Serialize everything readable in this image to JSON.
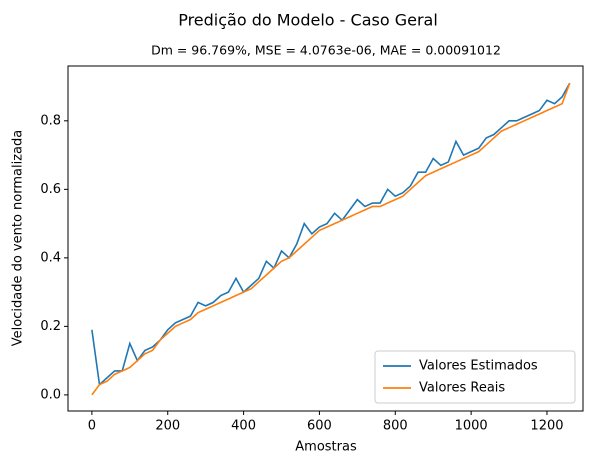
{
  "chart_data": {
    "type": "line",
    "title": "Predição do Modelo - Caso Geral",
    "subtitle": "Dm = 96.769%, MSE = 4.0763e-06, MAE = 0.00091012",
    "x_label": "Amostras",
    "y_label": "Velocidade do vento normalizada",
    "x": [
      0,
      20,
      40,
      60,
      80,
      100,
      120,
      140,
      160,
      180,
      200,
      220,
      240,
      260,
      280,
      300,
      320,
      340,
      360,
      380,
      400,
      420,
      440,
      460,
      480,
      500,
      520,
      540,
      560,
      580,
      600,
      620,
      640,
      660,
      680,
      700,
      720,
      740,
      760,
      780,
      800,
      820,
      840,
      860,
      880,
      900,
      920,
      940,
      960,
      980,
      1000,
      1020,
      1040,
      1060,
      1080,
      1100,
      1120,
      1140,
      1160,
      1180,
      1200,
      1220,
      1240,
      1260
    ],
    "series": [
      {
        "name": "Valores Estimados",
        "color": "#1f77b4",
        "values": [
          0.19,
          0.03,
          0.05,
          0.07,
          0.07,
          0.15,
          0.1,
          0.13,
          0.14,
          0.16,
          0.19,
          0.21,
          0.22,
          0.23,
          0.27,
          0.26,
          0.27,
          0.29,
          0.3,
          0.34,
          0.3,
          0.32,
          0.34,
          0.39,
          0.37,
          0.42,
          0.4,
          0.44,
          0.5,
          0.47,
          0.49,
          0.5,
          0.53,
          0.51,
          0.54,
          0.57,
          0.55,
          0.56,
          0.56,
          0.6,
          0.58,
          0.59,
          0.61,
          0.65,
          0.65,
          0.69,
          0.67,
          0.68,
          0.74,
          0.7,
          0.71,
          0.72,
          0.75,
          0.76,
          0.78,
          0.8,
          0.8,
          0.81,
          0.82,
          0.83,
          0.86,
          0.85,
          0.87,
          0.91
        ]
      },
      {
        "name": "Valores Reais",
        "color": "#ff7f0e",
        "values": [
          0.0,
          0.03,
          0.04,
          0.06,
          0.07,
          0.08,
          0.1,
          0.12,
          0.13,
          0.16,
          0.18,
          0.2,
          0.21,
          0.22,
          0.24,
          0.25,
          0.26,
          0.27,
          0.28,
          0.29,
          0.3,
          0.31,
          0.33,
          0.35,
          0.37,
          0.39,
          0.4,
          0.42,
          0.44,
          0.46,
          0.48,
          0.49,
          0.5,
          0.51,
          0.52,
          0.53,
          0.54,
          0.55,
          0.55,
          0.56,
          0.57,
          0.58,
          0.6,
          0.62,
          0.64,
          0.65,
          0.66,
          0.67,
          0.68,
          0.69,
          0.7,
          0.71,
          0.73,
          0.75,
          0.77,
          0.78,
          0.79,
          0.8,
          0.81,
          0.82,
          0.83,
          0.84,
          0.85,
          0.91
        ]
      }
    ],
    "xlim": [
      -63,
      1295
    ],
    "ylim": [
      -0.047,
      0.96
    ],
    "xticks": [
      0,
      200,
      400,
      600,
      800,
      1000,
      1200
    ],
    "yticks": [
      {
        "value": 0,
        "label": "0.0"
      },
      0.2,
      0.4,
      0.6,
      0.8
    ],
    "legend": "lower right",
    "grid": false
  }
}
